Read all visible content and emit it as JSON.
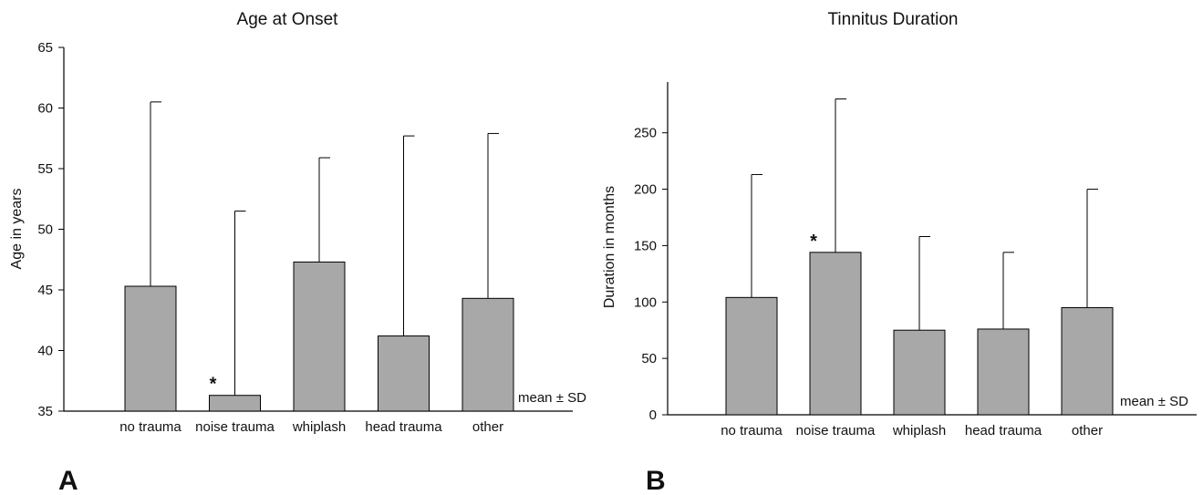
{
  "chart_data": [
    {
      "type": "bar",
      "panel_label": "A",
      "title": "Age at Onset",
      "xlabel": "",
      "ylabel": "Age in years",
      "ylim": [
        35,
        65
      ],
      "yticks": [
        35,
        40,
        45,
        50,
        55,
        60,
        65
      ],
      "categories": [
        "no trauma",
        "noise trauma",
        "whiplash",
        "head trauma",
        "other"
      ],
      "series": [
        {
          "values": [
            45.3,
            36.3,
            47.3,
            41.2,
            44.3
          ],
          "sd_upper": [
            60.5,
            51.5,
            55.9,
            57.7,
            57.9
          ]
        }
      ],
      "significance_marker": "*",
      "significant": [
        false,
        true,
        false,
        false,
        false
      ],
      "note": "mean ± SD",
      "grid": false,
      "bar_color": "#a8a8a8"
    },
    {
      "type": "bar",
      "panel_label": "B",
      "title": "Tinnitus Duration",
      "xlabel": "",
      "ylabel": "Duration in months",
      "ylim": [
        0,
        295
      ],
      "yticks": [
        0,
        50,
        100,
        150,
        200,
        250
      ],
      "categories": [
        "no trauma",
        "noise trauma",
        "whiplash",
        "head trauma",
        "other"
      ],
      "series": [
        {
          "values": [
            104,
            144,
            75,
            76,
            95
          ],
          "sd_upper": [
            213,
            280,
            158,
            144,
            200
          ]
        }
      ],
      "significance_marker": "*",
      "significant": [
        false,
        true,
        false,
        false,
        false
      ],
      "note": "mean ± SD",
      "grid": false,
      "bar_color": "#a8a8a8"
    }
  ]
}
